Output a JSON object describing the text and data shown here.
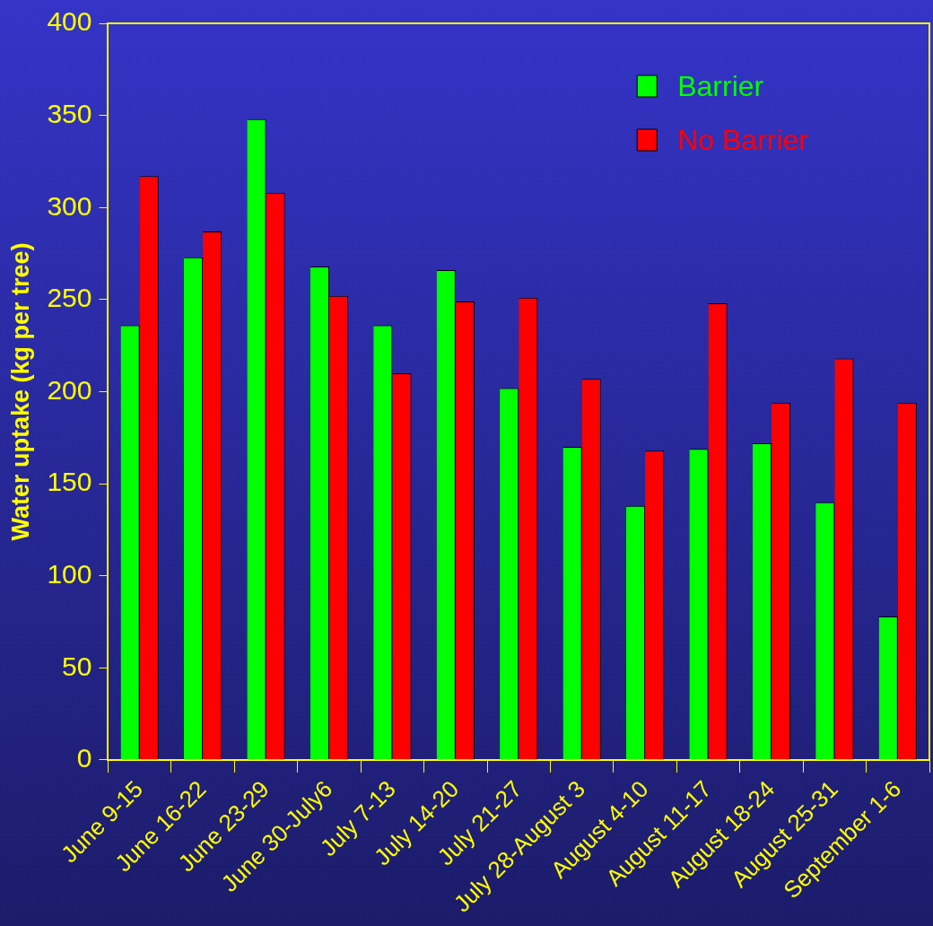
{
  "chart_data": {
    "type": "bar",
    "ylabel": "Water uptake (kg per tree)",
    "categories": [
      "June 9-15",
      "June 16-22",
      "June 23-29",
      "June 30-July6",
      "July 7-13",
      "July 14-20",
      "July 21-27",
      "July 28-August 3",
      "August 4-10",
      "August 11-17",
      "August 18-24",
      "August 25-31",
      "September 1-6"
    ],
    "series": [
      {
        "name": "Barrier",
        "color": "#00ff00",
        "values": [
          236,
          273,
          348,
          268,
          236,
          266,
          202,
          170,
          138,
          169,
          172,
          140,
          78
        ]
      },
      {
        "name": "No Barrier",
        "color": "#ff0000",
        "values": [
          317,
          287,
          308,
          252,
          210,
          249,
          251,
          207,
          168,
          248,
          194,
          218,
          194
        ]
      }
    ],
    "ylim": [
      0,
      400
    ],
    "yticks": [
      0,
      50,
      100,
      150,
      200,
      250,
      300,
      350,
      400
    ],
    "grid": false,
    "legend": "top right"
  }
}
